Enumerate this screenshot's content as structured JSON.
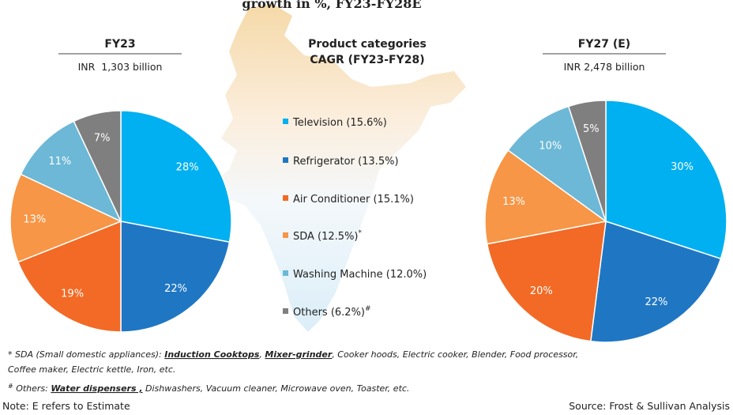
{
  "header": "growth in %, FY23-FY28E",
  "chart_data": [
    {
      "type": "pie",
      "title": "FY23",
      "subtitle": "INR  1,303 billion",
      "values": [
        28,
        22,
        19,
        13,
        11,
        7
      ],
      "value_labels": [
        "28%",
        "22%",
        "19%",
        "13%",
        "11%",
        "7%"
      ],
      "colors": [
        "#00b0f0",
        "#1f77c4",
        "#f26a25",
        "#f79646",
        "#6cb8d6",
        "#7f7f7f"
      ]
    },
    {
      "type": "pie",
      "title": "FY27 (E)",
      "subtitle": "INR 2,478 billion",
      "values": [
        30,
        22,
        20,
        13,
        10,
        5
      ],
      "value_labels": [
        "30%",
        "22%",
        "20%",
        "13%",
        "10%",
        "5%"
      ],
      "colors": [
        "#00b0f0",
        "#1f77c4",
        "#f26a25",
        "#f79646",
        "#6cb8d6",
        "#7f7f7f"
      ]
    }
  ],
  "legend": {
    "title": [
      "Product categories",
      "CAGR (FY23-FY28)"
    ],
    "items": [
      {
        "label": "Television (15.6%)",
        "color": "#00b0f0"
      },
      {
        "label": "Refrigerator (13.5%)",
        "color": "#1f77c4"
      },
      {
        "label": "Air Conditioner (15.1%)",
        "color": "#f26a25"
      },
      {
        "label": "SDA (12.5%)",
        "color": "#f79646",
        "mark": "*"
      },
      {
        "label": "Washing Machine (12.0%)",
        "color": "#6cb8d6"
      },
      {
        "label": "Others (6.2%)",
        "color": "#7f7f7f",
        "mark": "#"
      }
    ]
  },
  "notes": [
    {
      "marker": "*",
      "parts": [
        " SDA (Small domestic appliances): ",
        "Induction Cooktops",
        ", ",
        "Mixer-grinder",
        ", Cooker hoods, Electric cooker, Blender, Food processor,"
      ],
      "line2": "Coffee maker, Electric kettle, Iron, etc."
    },
    {
      "marker": "#",
      "parts": [
        " Others: ",
        "Water dispensers ,",
        " Dishwashers, Vacuum cleaner, Microwave oven, Toaster, etc."
      ]
    }
  ],
  "footer": {
    "note": "Note: E refers to Estimate",
    "source": "Source: Frost & Sullivan Analysis"
  }
}
